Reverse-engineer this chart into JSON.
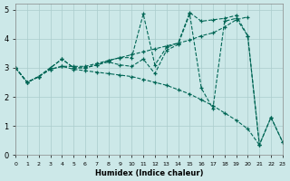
{
  "xlabel": "Humidex (Indice chaleur)",
  "bg_color": "#cce8e8",
  "grid_color": "#aacccc",
  "line_color": "#006655",
  "xlim": [
    0,
    23
  ],
  "ylim": [
    0,
    5.2
  ],
  "xtick_labels": [
    "0",
    "1",
    "2",
    "3",
    "4",
    "5",
    "6",
    "7",
    "8",
    "9",
    "10",
    "11",
    "12",
    "13",
    "14",
    "15",
    "16",
    "17",
    "18",
    "19",
    "20",
    "21",
    "22",
    "23"
  ],
  "ytick_labels": [
    "0",
    "1",
    "2",
    "3",
    "4",
    "5"
  ],
  "line1_x": [
    0,
    1,
    2,
    3,
    4,
    5,
    6,
    7,
    8,
    9,
    10,
    11,
    12,
    13,
    14,
    15,
    16,
    17,
    18,
    19,
    20,
    21,
    22,
    23
  ],
  "line1_y": [
    3.0,
    2.5,
    2.7,
    3.0,
    3.3,
    3.0,
    3.0,
    3.1,
    3.2,
    3.1,
    3.05,
    3.3,
    2.8,
    3.6,
    3.8,
    4.85,
    2.3,
    1.6,
    4.6,
    4.7,
    4.1,
    0.35,
    1.3,
    0.45
  ],
  "line2_x": [
    0,
    1,
    2,
    3,
    4,
    5,
    6,
    7,
    8,
    9,
    10,
    11,
    12,
    13,
    14,
    15,
    16,
    17,
    18,
    19,
    20
  ],
  "line2_y": [
    3.0,
    2.5,
    2.7,
    2.95,
    3.05,
    3.05,
    3.05,
    3.15,
    3.25,
    3.35,
    3.45,
    3.55,
    3.65,
    3.75,
    3.85,
    3.95,
    4.1,
    4.2,
    4.4,
    4.65,
    4.75
  ],
  "line3_x": [
    0,
    1,
    2,
    3,
    4,
    5,
    6,
    7,
    8,
    9,
    10,
    11,
    12,
    13,
    14,
    15,
    16,
    17,
    18,
    19,
    20,
    21
  ],
  "line3_y": [
    3.0,
    2.5,
    2.7,
    2.95,
    3.05,
    2.95,
    2.9,
    2.85,
    2.8,
    2.75,
    2.7,
    2.6,
    2.5,
    2.4,
    2.25,
    2.1,
    1.9,
    1.7,
    1.45,
    1.2,
    0.9,
    0.35
  ],
  "line4_x": [
    0,
    1,
    2,
    3,
    4,
    5,
    6,
    7,
    8,
    9,
    10,
    11,
    12,
    13,
    14,
    15,
    16,
    17,
    18,
    19,
    20,
    21,
    22,
    23
  ],
  "line4_y": [
    3.0,
    2.5,
    2.7,
    3.0,
    3.3,
    3.0,
    3.0,
    3.1,
    3.25,
    3.35,
    3.35,
    4.85,
    3.1,
    3.7,
    3.85,
    4.9,
    4.6,
    4.65,
    4.7,
    4.8,
    4.1,
    0.35,
    1.3,
    0.45
  ]
}
